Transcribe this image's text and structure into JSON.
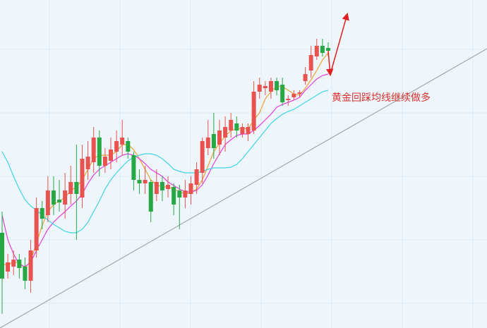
{
  "chart_data": {
    "type": "candlestick",
    "annotation": "黄金回踩均线继续做多",
    "annotation_color": "#d8322e",
    "up_color": "#e8534f",
    "down_color": "#27a844",
    "ylim": [
      0,
      465
    ],
    "open": [
      135,
      80,
      87,
      97,
      87,
      67,
      110,
      170,
      160,
      195,
      182,
      175,
      190,
      207,
      185,
      225,
      235,
      270,
      230,
      237,
      250,
      260,
      265,
      245,
      210,
      205,
      207,
      190,
      207,
      197,
      200,
      195,
      185,
      190,
      203,
      220,
      255,
      275,
      260,
      270,
      280,
      290,
      275,
      275,
      280,
      335,
      340,
      335,
      350,
      345,
      323,
      327,
      332,
      350,
      365,
      385,
      400,
      397
    ],
    "close": [
      70,
      93,
      97,
      85,
      67,
      110,
      170,
      155,
      195,
      175,
      178,
      195,
      207,
      190,
      240,
      243,
      270,
      230,
      243,
      253,
      265,
      270,
      250,
      210,
      205,
      210,
      165,
      207,
      195,
      203,
      175,
      185,
      195,
      205,
      225,
      265,
      270,
      255,
      280,
      285,
      295,
      280,
      285,
      285,
      335,
      345,
      343,
      350,
      337,
      320,
      325,
      332,
      334,
      360,
      387,
      400,
      390,
      393
    ],
    "high": [
      165,
      105,
      110,
      105,
      100,
      125,
      185,
      180,
      215,
      215,
      210,
      220,
      230,
      260,
      260,
      265,
      285,
      280,
      255,
      270,
      280,
      295,
      270,
      250,
      225,
      230,
      210,
      225,
      215,
      215,
      205,
      203,
      210,
      215,
      235,
      270,
      295,
      305,
      295,
      300,
      305,
      300,
      290,
      290,
      350,
      355,
      350,
      355,
      355,
      355,
      330,
      337,
      337,
      370,
      400,
      410,
      410,
      405
    ],
    "low": [
      20,
      70,
      75,
      70,
      55,
      50,
      100,
      140,
      150,
      160,
      165,
      155,
      175,
      125,
      170,
      210,
      220,
      215,
      220,
      225,
      235,
      245,
      240,
      195,
      190,
      190,
      150,
      180,
      180,
      185,
      160,
      140,
      170,
      175,
      190,
      205,
      245,
      240,
      245,
      250,
      270,
      270,
      270,
      265,
      275,
      325,
      330,
      325,
      330,
      315,
      315,
      323,
      327,
      345,
      355,
      380,
      385,
      385
    ],
    "series": [
      {
        "color": "#f0a030",
        "values": [
          90,
          90,
          93,
          93,
          85,
          95,
          120,
          145,
          165,
          175,
          180,
          185,
          195,
          200,
          210,
          225,
          240,
          245,
          245,
          245,
          250,
          260,
          260,
          253,
          240,
          225,
          210,
          203,
          200,
          200,
          197,
          193,
          190,
          192,
          197,
          210,
          230,
          250,
          262,
          272,
          280,
          282,
          283,
          282,
          295,
          305,
          325,
          335,
          343,
          342,
          337,
          332,
          330,
          340,
          352,
          365,
          380,
          390
        ]
      },
      {
        "color": "#e23fe0",
        "values": [
          160,
          125,
          105,
          90,
          87,
          93,
          110,
          125,
          140,
          150,
          158,
          165,
          173,
          180,
          190,
          205,
          217,
          225,
          230,
          235,
          240,
          245,
          247,
          245,
          240,
          233,
          225,
          220,
          215,
          207,
          202,
          197,
          193,
          193,
          195,
          203,
          217,
          233,
          247,
          260,
          267,
          273,
          275,
          275,
          280,
          287,
          295,
          303,
          313,
          317,
          320,
          323,
          327,
          337,
          345,
          353,
          358,
          360
        ]
      },
      {
        "color": "#3fd4e6",
        "values": [
          250,
          235,
          215,
          197,
          182,
          173,
          167,
          160,
          153,
          147,
          142,
          137,
          135,
          135,
          140,
          150,
          165,
          180,
          197,
          210,
          220,
          229,
          237,
          242,
          245,
          247,
          247,
          245,
          240,
          233,
          225,
          222,
          220,
          220,
          220,
          222,
          225,
          227,
          227,
          227,
          228,
          232,
          240,
          250,
          260,
          270,
          280,
          290,
          297,
          303,
          307,
          310,
          315,
          320,
          325,
          330,
          335,
          337
        ]
      }
    ]
  }
}
